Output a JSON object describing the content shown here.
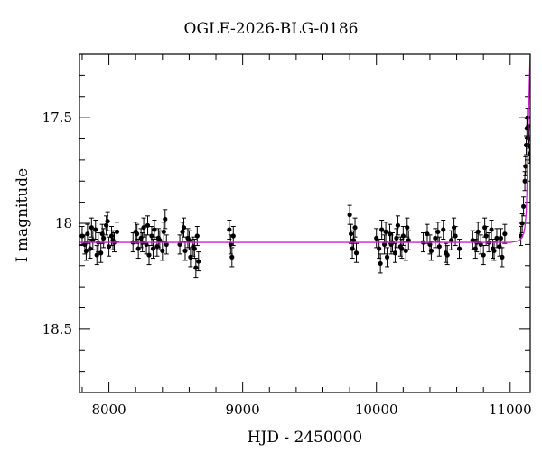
{
  "chart_data": {
    "type": "scatter",
    "title": "OGLE-2026-BLG-0186",
    "xlabel": "HJD - 2450000",
    "ylabel": "I magnitude",
    "xlim": [
      7780,
      11150
    ],
    "ylim": [
      18.8,
      17.2
    ],
    "y_inverted": true,
    "x_ticks": [
      8000,
      9000,
      10000,
      11000
    ],
    "y_ticks": [
      17.5,
      18,
      18.5
    ],
    "y_tick_labels": [
      "17.5",
      "18",
      "18.5"
    ],
    "x_minor_step": 200,
    "y_minor_step": 0.1,
    "grid": false,
    "colors": {
      "points": "#000000",
      "model": "#cc22cc",
      "axes": "#000000"
    },
    "series": [
      {
        "type": "scatter-errorbar",
        "x": [
          7800,
          7820,
          7840,
          7860,
          7880,
          7900,
          7920,
          7940,
          7960,
          7980,
          8000,
          8020,
          8040,
          8060,
          7830,
          7870,
          7910,
          7950,
          7990,
          8030,
          8180,
          8200,
          8220,
          8240,
          8260,
          8280,
          8300,
          8320,
          8340,
          8360,
          8380,
          8400,
          8420,
          8210,
          8250,
          8290,
          8330,
          8370,
          8410,
          8430,
          8530,
          8550,
          8570,
          8590,
          8610,
          8630,
          8650,
          8670,
          8560,
          8600,
          8640,
          8660,
          8900,
          8910,
          8920,
          8930,
          9800,
          9810,
          9820,
          9830,
          9840,
          9850,
          10000,
          10020,
          10040,
          10060,
          10080,
          10100,
          10120,
          10140,
          10160,
          10180,
          10200,
          10220,
          10240,
          10030,
          10070,
          10110,
          10150,
          10190,
          10230,
          10350,
          10380,
          10410,
          10440,
          10470,
          10500,
          10530,
          10560,
          10590,
          10620,
          10400,
          10460,
          10520,
          10580,
          10720,
          10740,
          10760,
          10780,
          10800,
          10820,
          10840,
          10860,
          10880,
          10900,
          10920,
          10940,
          10960,
          10750,
          10810,
          10870,
          10930,
          11080,
          11090,
          11100,
          11110,
          11115,
          11120,
          11125,
          11130,
          11135,
          11140,
          11145
        ],
        "y": [
          18.06,
          18.1,
          18.05,
          18.12,
          18.08,
          18.03,
          18.09,
          18.14,
          18.07,
          18.01,
          18.11,
          18.06,
          18.09,
          18.04,
          18.13,
          18.02,
          18.15,
          18.05,
          17.99,
          18.08,
          18.09,
          18.04,
          18.12,
          18.07,
          18.02,
          18.1,
          18.15,
          18.06,
          18.03,
          18.11,
          18.08,
          18.13,
          17.98,
          18.05,
          18.09,
          18.01,
          18.12,
          18.07,
          18.04,
          18.1,
          18.1,
          18.04,
          18.13,
          18.07,
          18.16,
          18.11,
          18.21,
          18.18,
          18.02,
          18.08,
          18.12,
          18.06,
          18.03,
          18.1,
          18.16,
          18.06,
          17.96,
          18.05,
          18.12,
          18.08,
          18.02,
          18.14,
          18.07,
          18.12,
          18.03,
          18.1,
          18.16,
          18.05,
          18.09,
          18.14,
          18.01,
          18.11,
          18.06,
          18.13,
          18.08,
          18.19,
          18.04,
          18.1,
          18.07,
          18.12,
          18.02,
          18.09,
          18.05,
          18.13,
          18.07,
          18.11,
          18.03,
          18.15,
          18.08,
          18.06,
          18.12,
          18.1,
          18.04,
          18.14,
          18.02,
          18.08,
          18.12,
          18.04,
          18.1,
          18.15,
          18.06,
          18.09,
          18.03,
          18.13,
          18.07,
          18.11,
          18.16,
          18.05,
          18.09,
          18.02,
          18.12,
          18.07,
          18.06,
          18.0,
          17.92,
          17.8,
          17.73,
          17.63,
          17.55,
          17.5,
          17.54,
          17.6,
          17.67
        ],
        "yerr": 0.045
      },
      {
        "type": "line",
        "x": [
          7780,
          8500,
          9500,
          10500,
          11000,
          11050,
          11080,
          11100,
          11110,
          11120,
          11125,
          11130,
          11135,
          11140,
          11145,
          11150
        ],
        "y": [
          18.09,
          18.09,
          18.09,
          18.09,
          18.09,
          18.085,
          18.075,
          18.05,
          18.02,
          17.95,
          17.85,
          17.7,
          17.55,
          17.42,
          17.3,
          17.2
        ]
      }
    ]
  }
}
